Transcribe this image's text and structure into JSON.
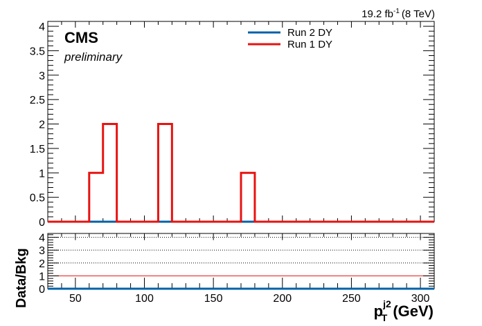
{
  "header": {
    "lumi_value": "19.2 fb",
    "lumi_exp": "-1",
    "energy": "(8 TeV)"
  },
  "labels": {
    "experiment": "CMS",
    "status": "preliminary"
  },
  "colors": {
    "run2": "#0060a8",
    "run1": "#e8120f",
    "ratio_line": "#e8120f"
  },
  "chart_data": [
    {
      "type": "line",
      "style": "step-histogram",
      "xlim": [
        30,
        310
      ],
      "ylim": [
        0,
        4.1
      ],
      "yticks": [
        "0",
        "0.5",
        "1",
        "1.5",
        "2",
        "2.5",
        "3",
        "3.5",
        "4"
      ],
      "bin_edges": [
        30,
        40,
        50,
        60,
        70,
        80,
        90,
        100,
        110,
        120,
        130,
        140,
        150,
        160,
        170,
        180,
        190,
        200,
        210,
        220,
        230,
        240,
        250,
        260,
        270,
        280,
        290,
        300,
        310
      ],
      "series": [
        {
          "name": "Run 2 DY",
          "values": [
            0,
            0,
            0,
            0,
            0,
            0,
            0,
            0,
            0,
            0,
            0,
            0,
            0,
            0,
            0,
            0,
            0,
            0,
            0,
            0,
            0,
            0,
            0,
            0,
            0,
            0,
            0,
            0
          ]
        },
        {
          "name": "Run 1 DY",
          "values": [
            0,
            0,
            0,
            1,
            2,
            0,
            0,
            0,
            2,
            0,
            0,
            0,
            0,
            0,
            1,
            0,
            0,
            0,
            0,
            0,
            0,
            0,
            0,
            0,
            0,
            0,
            0,
            0
          ]
        }
      ],
      "legend": "top-center"
    },
    {
      "type": "line",
      "xlabel_main": "p",
      "xlabel_sub": "T",
      "xlabel_sup": "j2",
      "xlabel_unit": "(GeV)",
      "ylabel": "Data/Bkg",
      "xlim": [
        30,
        310
      ],
      "ylim": [
        0,
        4.3
      ],
      "xticks": [
        "50",
        "100",
        "150",
        "200",
        "250",
        "300"
      ],
      "yticks": [
        "0",
        "1",
        "2",
        "3",
        "4"
      ],
      "reference_line": 1,
      "series_value": 0
    }
  ]
}
